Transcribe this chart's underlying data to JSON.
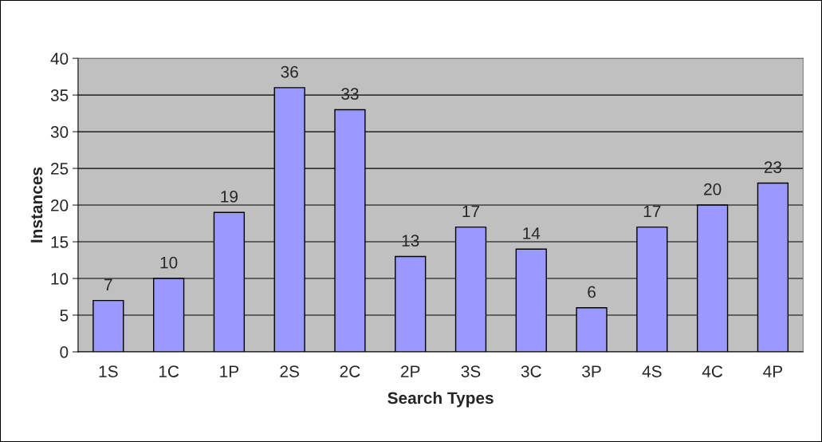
{
  "chart_data": {
    "type": "bar",
    "xlabel": "Search Types",
    "ylabel": "Instances",
    "categories": [
      "1S",
      "1C",
      "1P",
      "2S",
      "2C",
      "2P",
      "3S",
      "3C",
      "3P",
      "4S",
      "4C",
      "4P"
    ],
    "values": [
      7,
      10,
      19,
      36,
      33,
      13,
      17,
      14,
      6,
      17,
      20,
      23
    ],
    "color": "#9999ff",
    "ylim": [
      0,
      40
    ],
    "yticks": [
      0,
      5,
      10,
      15,
      20,
      25,
      30,
      35,
      40
    ],
    "grid": "y",
    "data_labels": true,
    "legend": false
  }
}
